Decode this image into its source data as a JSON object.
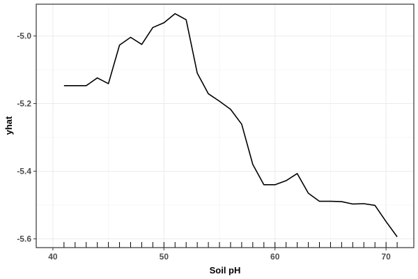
{
  "chart_data": {
    "type": "line",
    "title": "",
    "xlabel": "Soil pH",
    "ylabel": "yhat",
    "xlim": [
      38.5,
      72.5
    ],
    "ylim": [
      -5.626,
      -4.906
    ],
    "x_ticks": [
      40,
      50,
      60,
      70
    ],
    "x_tick_labels": [
      "40",
      "50",
      "60",
      "70"
    ],
    "y_ticks": [
      -5.6,
      -5.4,
      -5.2,
      -5.0
    ],
    "y_tick_labels": [
      "-5.6",
      "-5.4",
      "-5.2",
      "-5.0"
    ],
    "grid": true,
    "rug_x": [
      41,
      42,
      43,
      44,
      45,
      46,
      47,
      48,
      49,
      50,
      51,
      52,
      53,
      54,
      55,
      56,
      57,
      58,
      59,
      60,
      61,
      62,
      63,
      64,
      65,
      66,
      67,
      68,
      69,
      70,
      71
    ],
    "line_color": "#000000",
    "series": [
      {
        "x": [
          41,
          42,
          43,
          44,
          45,
          46,
          47,
          48,
          49,
          50,
          51,
          52,
          53,
          54,
          55,
          56,
          57,
          58,
          59,
          60,
          61,
          62,
          63,
          64,
          65,
          66,
          67,
          68,
          69,
          70,
          71
        ],
        "values": [
          -5.147,
          -5.147,
          -5.147,
          -5.124,
          -5.141,
          -5.027,
          -5.004,
          -5.025,
          -4.975,
          -4.961,
          -4.934,
          -4.952,
          -5.11,
          -5.171,
          -5.193,
          -5.217,
          -5.261,
          -5.38,
          -5.44,
          -5.44,
          -5.428,
          -5.407,
          -5.465,
          -5.489,
          -5.489,
          -5.49,
          -5.497,
          -5.496,
          -5.501,
          -5.549,
          -5.594
        ]
      }
    ]
  }
}
